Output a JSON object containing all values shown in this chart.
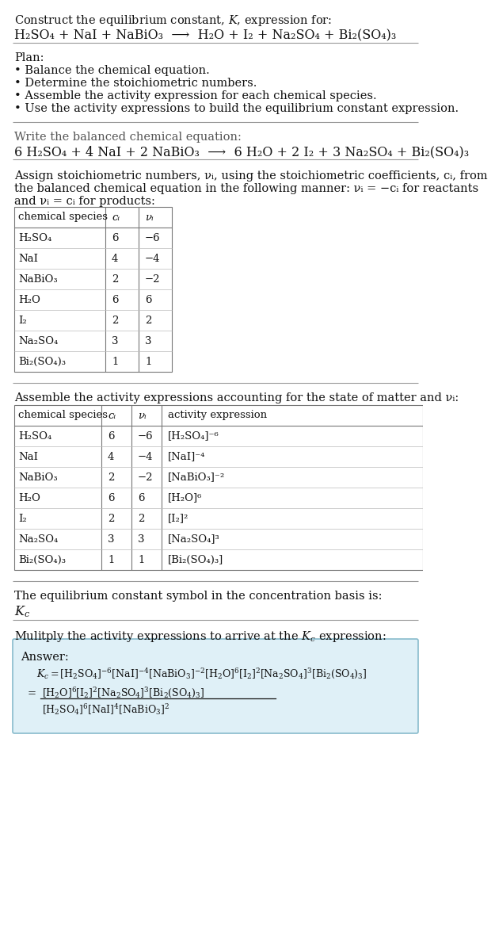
{
  "bg_color": "#ffffff",
  "text_color": "#111111",
  "table_border_color": "#777777",
  "answer_box_color": "#dff0f7",
  "answer_box_border": "#88bbcc",
  "sec1_line1": "Construct the equilibrium constant, $K$, expression for:",
  "sec1_line2_plain": "H₂SO₄ + NaI + NaBiO₃  ⟶  H₂O + I₂ + Na₂SO₄ + Bi₂(SO₄)₃",
  "plan_header": "Plan:",
  "plan_items": [
    "• Balance the chemical equation.",
    "• Determine the stoichiometric numbers.",
    "• Assemble the activity expression for each chemical species.",
    "• Use the activity expressions to build the equilibrium constant expression."
  ],
  "balanced_header": "Write the balanced chemical equation:",
  "balanced_eq_plain": "6 H₂SO₄ + 4 NaI + 2 NaBiO₃  ⟶  6 H₂O + 2 I₂ + 3 Na₂SO₄ + Bi₂(SO₄)₃",
  "stoich_intro1": "Assign stoichiometric numbers, νᵢ, using the stoichiometric coefficients, cᵢ, from",
  "stoich_intro2": "the balanced chemical equation in the following manner: νᵢ = −cᵢ for reactants",
  "stoich_intro3": "and νᵢ = cᵢ for products:",
  "table1_col_headers": [
    "chemical species",
    "cᵢ",
    "νᵢ"
  ],
  "table1_rows": [
    [
      "H₂SO₄",
      "6",
      "−6"
    ],
    [
      "NaI",
      "4",
      "−4"
    ],
    [
      "NaBiO₃",
      "2",
      "−2"
    ],
    [
      "H₂O",
      "6",
      "6"
    ],
    [
      "I₂",
      "2",
      "2"
    ],
    [
      "Na₂SO₄",
      "3",
      "3"
    ],
    [
      "Bi₂(SO₄)₃",
      "1",
      "1"
    ]
  ],
  "activity_intro": "Assemble the activity expressions accounting for the state of matter and νᵢ:",
  "table2_col_headers": [
    "chemical species",
    "cᵢ",
    "νᵢ",
    "activity expression"
  ],
  "table2_rows": [
    [
      "H₂SO₄",
      "6",
      "−6",
      "[H₂SO₄]⁻⁶"
    ],
    [
      "NaI",
      "4",
      "−4",
      "[NaI]⁻⁴"
    ],
    [
      "NaBiO₃",
      "2",
      "−2",
      "[NaBiO₃]⁻²"
    ],
    [
      "H₂O",
      "6",
      "6",
      "[H₂O]⁶"
    ],
    [
      "I₂",
      "2",
      "2",
      "[I₂]²"
    ],
    [
      "Na₂SO₄",
      "3",
      "3",
      "[Na₂SO₄]³"
    ],
    [
      "Bi₂(SO₄)₃",
      "1",
      "1",
      "[Bi₂(SO₄)₃]"
    ]
  ],
  "kc_intro": "The equilibrium constant symbol in the concentration basis is:",
  "kc_symbol_math": "$K_c$",
  "multiply_intro": "Mulitply the activity expressions to arrive at the $K_c$ expression:",
  "answer_label": "Answer:",
  "kc_line1_parts": [
    "$K_c$",
    " = [H₂SO₄]",
    "⁻⁶",
    " [NaI]",
    "⁻⁴",
    " [NaBiO₃]",
    "⁻²",
    " [H₂O]",
    "⁶",
    " [I₂]",
    "²",
    " [Na₂SO₄]",
    "³",
    " [Bi₂(SO₄)₃]"
  ],
  "kc_full_line1": "$K_c = [\\mathrm{H_2SO_4}]^{-6} [\\mathrm{NaI}]^{-4} [\\mathrm{NaBiO_3}]^{-2} [\\mathrm{H_2O}]^{6} [\\mathrm{I_2}]^{2} [\\mathrm{Na_2SO_4}]^{3} [\\mathrm{Bi_2(SO_4)_3}]$",
  "kc_num": "$[\\mathrm{H_2O}]^6 [\\mathrm{I_2}]^2 [\\mathrm{Na_2SO_4}]^3 [\\mathrm{Bi_2(SO_4)_3}]$",
  "kc_den": "$[\\mathrm{H_2SO_4}]^6 [\\mathrm{NaI}]^4 [\\mathrm{NaBiO_3}]^2$"
}
